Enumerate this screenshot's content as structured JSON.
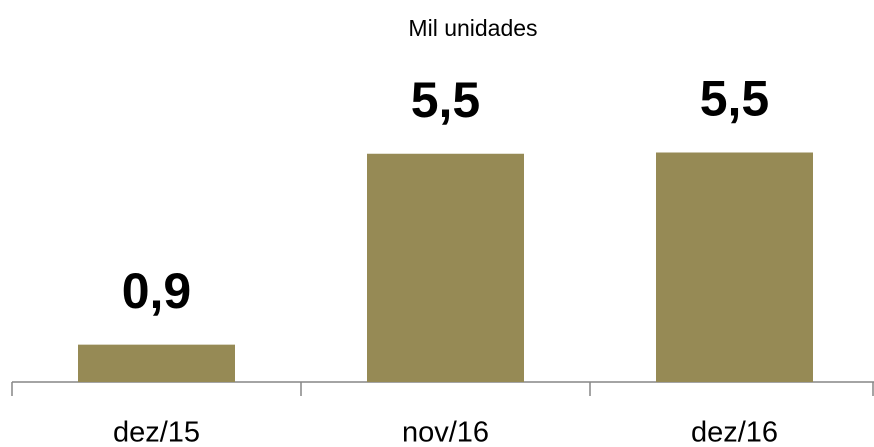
{
  "chart_data": {
    "type": "bar",
    "title": "Mil unidades",
    "categories": [
      "dez/15",
      "nov/16",
      "dez/16"
    ],
    "values": [
      0.9,
      5.5,
      5.53
    ],
    "value_labels": [
      "0,9",
      "5,5",
      "5,5"
    ],
    "color": "#968a55"
  }
}
